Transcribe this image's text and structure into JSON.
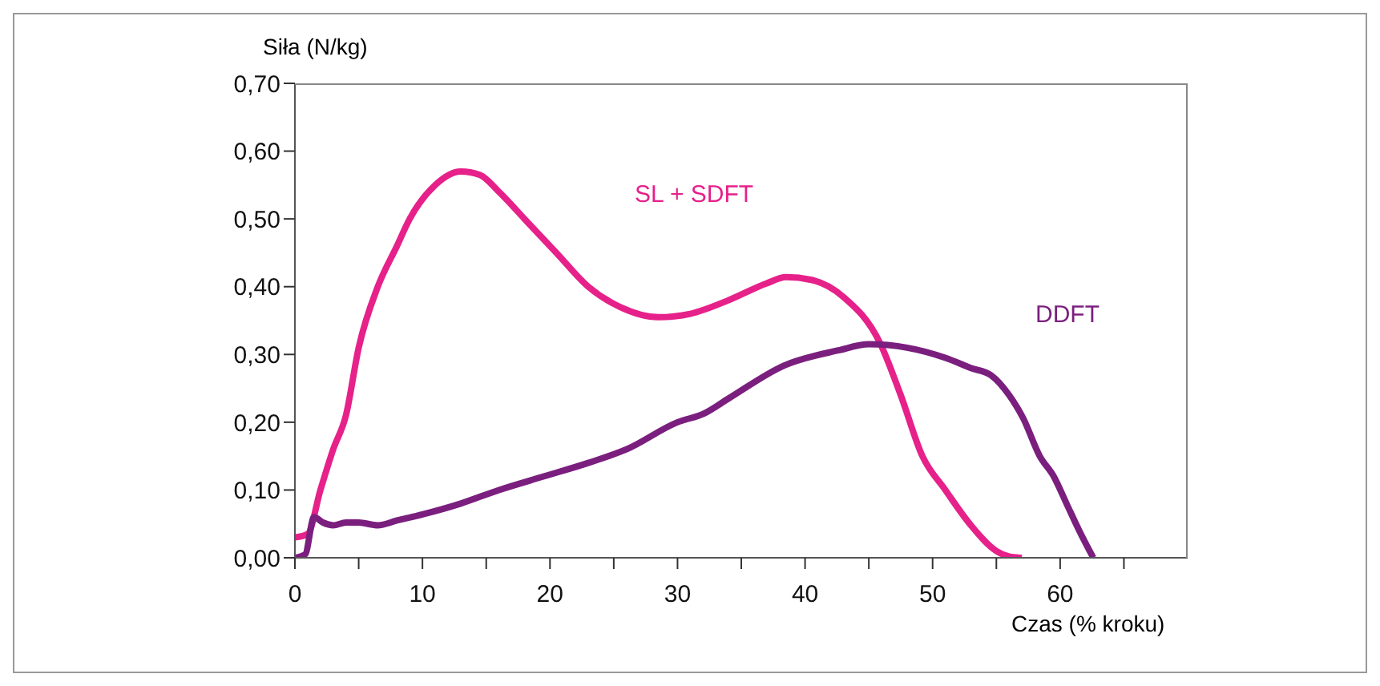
{
  "chart_data": {
    "type": "line",
    "xlabel": "Czas (% kroku)",
    "ylabel": "Siła (N/kg)",
    "xlim": [
      0,
      70
    ],
    "xticks": [
      0,
      {
        "value": 5,
        "label": null
      },
      10,
      {
        "value": 15,
        "label": null
      },
      20,
      {
        "value": 25,
        "label": null
      },
      30,
      {
        "value": 35,
        "label": null
      },
      40,
      {
        "value": 45,
        "label": null
      },
      50,
      {
        "value": 55,
        "label": null
      },
      60,
      {
        "value": 65,
        "label": null
      }
    ],
    "ylim": [
      0,
      0.7
    ],
    "yticks": [
      {
        "value": 0,
        "label": "0,00"
      },
      {
        "value": 0.1,
        "label": "0,10"
      },
      {
        "value": 0.2,
        "label": "0,20"
      },
      {
        "value": 0.3,
        "label": "0,30"
      },
      {
        "value": 0.4,
        "label": "0,40"
      },
      {
        "value": 0.5,
        "label": "0,50"
      },
      {
        "value": 0.6,
        "label": "0,60"
      },
      {
        "value": 0.7,
        "label": "0,70"
      }
    ],
    "marker": "none",
    "line_style": "solid",
    "series": [
      {
        "name": "SL + SDFT",
        "color": "#e6218a",
        "x": [
          0,
          1,
          2,
          3,
          4,
          5,
          6.5,
          8,
          9,
          11,
          13,
          14.5,
          16,
          18,
          20.5,
          23,
          25.5,
          28.5,
          31,
          34,
          37,
          38.5,
          40.5,
          43,
          45.9,
          47.5,
          49.2,
          51,
          53,
          55,
          56,
          57
        ],
        "values": [
          0.03,
          0.035,
          0.1,
          0.16,
          0.21,
          0.31,
          0.4,
          0.46,
          0.5,
          0.55,
          0.57,
          0.565,
          0.54,
          0.5,
          0.45,
          0.4,
          0.37,
          0.355,
          0.36,
          0.38,
          0.405,
          0.414,
          0.41,
          0.385,
          0.316,
          0.24,
          0.15,
          0.1,
          0.048,
          0.01,
          0.002,
          0
        ]
      },
      {
        "name": "DDFT",
        "color": "#7b1f7f",
        "x": [
          0,
          0.8,
          1.5,
          2.2,
          3,
          4,
          5,
          6.5,
          8,
          10,
          13,
          16,
          19.5,
          23,
          26,
          30,
          32.1,
          34,
          38.4,
          42.6,
          45,
          48,
          51,
          53,
          54.6,
          56,
          57.1,
          58.4,
          59.5,
          60.5,
          61.5,
          62.6
        ],
        "values": [
          0,
          0.005,
          0.06,
          0.052,
          0.048,
          0.052,
          0.052,
          0.048,
          0.055,
          0.064,
          0.08,
          0.1,
          0.12,
          0.14,
          0.16,
          0.2,
          0.213,
          0.235,
          0.284,
          0.306,
          0.315,
          0.31,
          0.295,
          0.28,
          0.269,
          0.24,
          0.206,
          0.15,
          0.12,
          0.08,
          0.04,
          0
        ]
      }
    ]
  }
}
